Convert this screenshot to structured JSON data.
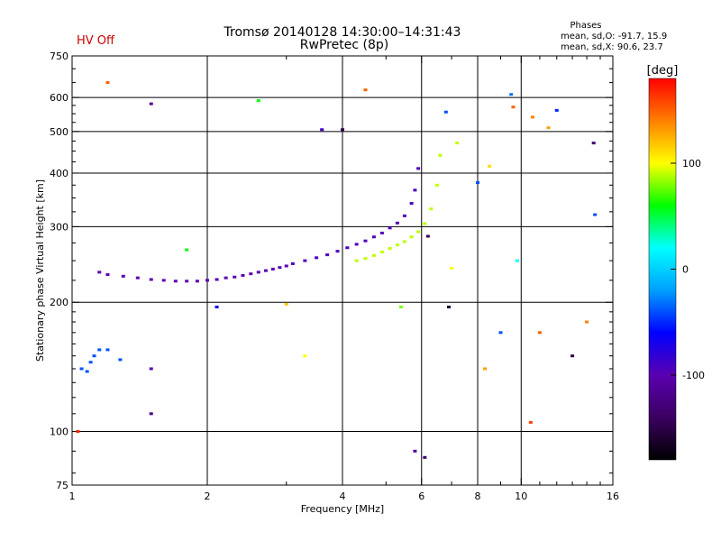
{
  "chart_data": {
    "type": "scatter",
    "title": "Tromsø 20140128 14:30:00–14:31:43",
    "subtitle": "RwPretec (8p)",
    "status_label": "HV Off",
    "status_color": "#cc0000",
    "phases": {
      "heading": "Phases",
      "line_o": "mean, sd,O: -91.7, 15.9",
      "line_x": "mean, sd,X:  90.6, 23.7"
    },
    "xlabel": "Frequency [MHz]",
    "ylabel": "Stationary phase Virtual Height [km]",
    "xscale": "log",
    "yscale": "log",
    "xlim": [
      1,
      16
    ],
    "ylim": [
      75,
      750
    ],
    "x_ticks": [
      {
        "value": 1,
        "label": "1"
      },
      {
        "value": 2,
        "label": "2"
      },
      {
        "value": 4,
        "label": "4"
      },
      {
        "value": 6,
        "label": "6"
      },
      {
        "value": 8,
        "label": "8"
      },
      {
        "value": 10,
        "label": "10"
      },
      {
        "value": 16,
        "label": "16"
      }
    ],
    "x_gridlines": [
      2,
      4,
      6,
      8,
      10
    ],
    "x_minor_ticks": [
      3,
      5,
      7,
      9,
      11,
      12,
      13,
      14,
      15
    ],
    "y_ticks": [
      {
        "value": 75,
        "label": "75"
      },
      {
        "value": 100,
        "label": "100"
      },
      {
        "value": 200,
        "label": "200"
      },
      {
        "value": 300,
        "label": "300"
      },
      {
        "value": 400,
        "label": "400"
      },
      {
        "value": 500,
        "label": "500"
      },
      {
        "value": 600,
        "label": "600"
      },
      {
        "value": 750,
        "label": "750"
      }
    ],
    "y_gridlines": [
      100,
      200,
      300,
      400,
      500,
      600
    ],
    "y_minor_ticks": [
      80,
      90,
      110,
      120,
      130,
      140,
      150,
      160,
      170,
      180,
      190,
      225,
      250,
      275,
      325,
      350,
      375,
      425,
      450,
      475,
      525,
      550,
      575,
      650,
      700
    ],
    "colorbar": {
      "label": "[deg]",
      "min": -180,
      "max": 180,
      "ticks": [
        {
          "value": 100,
          "label": "100"
        },
        {
          "value": 0,
          "label": "0"
        },
        {
          "value": -100,
          "label": "-100"
        }
      ],
      "stops": [
        "#000000",
        "#3a0060",
        "#5a00b0",
        "#0000ff",
        "#00a0ff",
        "#00ffff",
        "#00ff00",
        "#ffff00",
        "#ff8000",
        "#ff0000"
      ]
    },
    "series": [
      {
        "name": "O-mode E/F1 trace (low band)",
        "x": [
          1.15,
          1.2,
          1.3,
          1.4,
          1.5,
          1.6,
          1.7,
          1.8,
          1.9,
          2.0,
          2.1,
          2.2,
          2.3,
          2.4,
          2.5,
          2.6,
          2.7,
          2.8,
          2.9,
          3.0
        ],
        "y": [
          235,
          232,
          230,
          228,
          226,
          225,
          224,
          224,
          224,
          225,
          226,
          228,
          229,
          231,
          233,
          235,
          237,
          239,
          241,
          243
        ],
        "phase": -100
      },
      {
        "name": "O-mode F trace (rising)",
        "x": [
          3.1,
          3.3,
          3.5,
          3.7,
          3.9,
          4.1,
          4.3,
          4.5,
          4.7,
          4.9,
          5.1,
          5.3,
          5.5,
          5.7,
          5.8,
          5.9
        ],
        "y": [
          246,
          250,
          254,
          258,
          263,
          268,
          273,
          278,
          284,
          290,
          298,
          306,
          318,
          340,
          365,
          410
        ],
        "phase": -95
      },
      {
        "name": "X-mode F trace",
        "x": [
          4.3,
          4.5,
          4.7,
          4.9,
          5.1,
          5.3,
          5.5,
          5.7,
          5.9,
          6.1,
          6.3,
          6.5,
          6.6
        ],
        "y": [
          250,
          253,
          257,
          262,
          267,
          272,
          277,
          284,
          292,
          305,
          330,
          375,
          440
        ],
        "phase": 90
      },
      {
        "name": "Low-height echoes",
        "x": [
          1.05,
          1.08,
          1.1,
          1.12,
          1.15,
          1.2,
          1.28
        ],
        "y": [
          140,
          138,
          145,
          150,
          155,
          155,
          147
        ],
        "phase": -40
      },
      {
        "name": "Scattered noise",
        "x": [
          1.03,
          1.2,
          1.5,
          1.5,
          1.5,
          1.8,
          2.1,
          2.6,
          3.0,
          3.3,
          3.6,
          4.0,
          4.5,
          5.4,
          5.8,
          6.1,
          6.2,
          6.8,
          6.9,
          7.0,
          7.2,
          8.0,
          8.3,
          8.5,
          9.0,
          9.5,
          9.6,
          9.8,
          10.5,
          10.6,
          11.0,
          11.5,
          12.0,
          13.0,
          14.0,
          14.5,
          14.6
        ],
        "y": [
          100,
          650,
          580,
          140,
          110,
          265,
          195,
          590,
          198,
          150,
          505,
          505,
          625,
          195,
          90,
          87,
          285,
          555,
          195,
          240,
          470,
          380,
          140,
          415,
          170,
          610,
          570,
          250,
          105,
          540,
          170,
          510,
          560,
          150,
          180,
          470,
          320
        ],
        "phase": [
          170,
          150,
          -110,
          -100,
          -120,
          60,
          -60,
          60,
          120,
          100,
          -90,
          -150,
          150,
          80,
          -110,
          -130,
          -140,
          -40,
          -160,
          100,
          90,
          -40,
          130,
          110,
          -40,
          -30,
          150,
          20,
          160,
          140,
          150,
          130,
          -50,
          -150,
          140,
          -130,
          -40
        ]
      }
    ]
  }
}
